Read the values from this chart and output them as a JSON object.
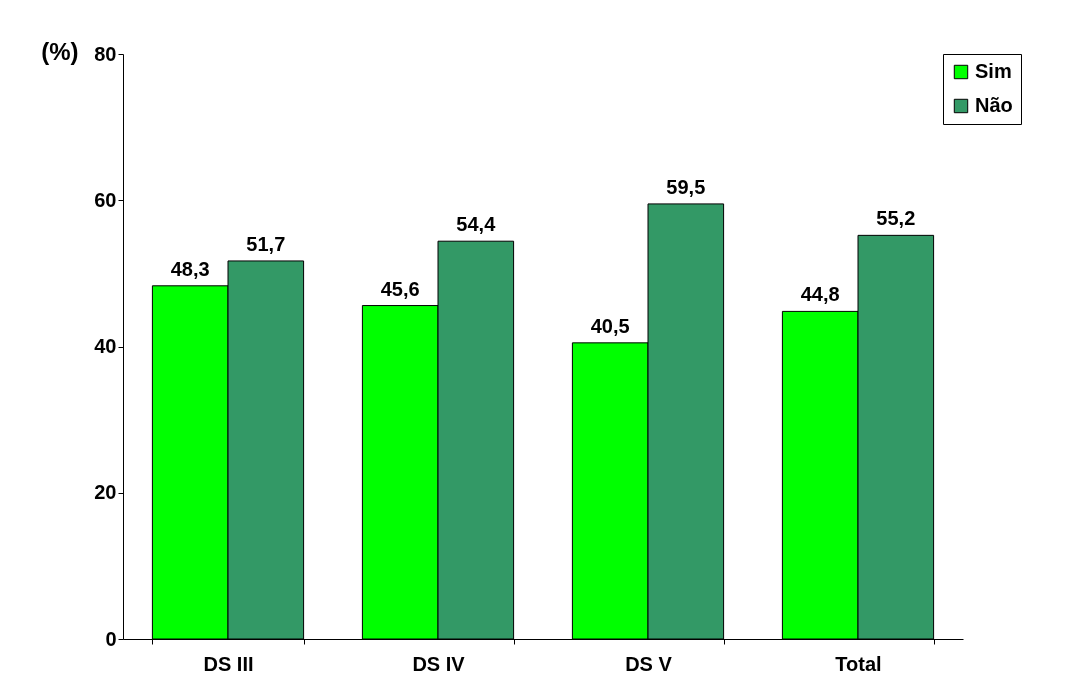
{
  "chart_data": {
    "type": "bar",
    "ylabel": "(%)",
    "categories": [
      "DS III",
      "DS IV",
      "DS V",
      "Total"
    ],
    "series": [
      {
        "name": "Sim",
        "color": "#00ff00",
        "values": [
          48.3,
          45.6,
          40.5,
          44.8
        ],
        "value_labels": [
          "48,3",
          "45,6",
          "40,5",
          "44,8"
        ]
      },
      {
        "name": "Não",
        "color": "#339966",
        "values": [
          51.7,
          54.4,
          59.5,
          55.2
        ],
        "value_labels": [
          "51,7",
          "54,4",
          "59,5",
          "55,2"
        ]
      }
    ],
    "ylim": [
      0,
      80
    ],
    "yticks": [
      0,
      20,
      40,
      60,
      80
    ],
    "grid": false,
    "legend": "right"
  }
}
